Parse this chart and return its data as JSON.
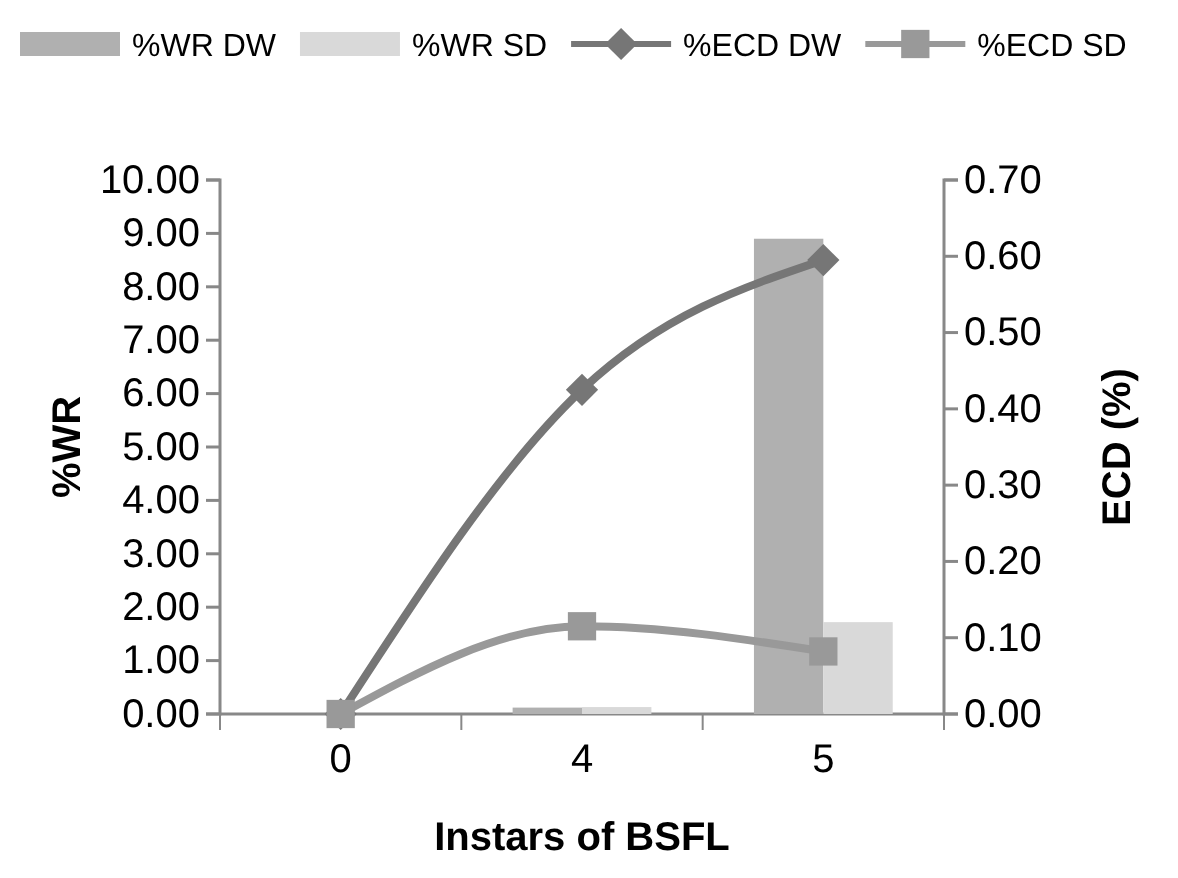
{
  "chart_data": {
    "type": "bar",
    "xlabel": "Instars of BSFL",
    "ylabel": "%WR",
    "y2label": "ECD (%)",
    "categories": [
      "0",
      "4",
      "5"
    ],
    "series": [
      {
        "name": "%WR DW",
        "color": "#b0b0b0",
        "values": [
          0,
          0.12,
          8.9
        ]
      },
      {
        "name": "%WR SD",
        "color": "#d9d9d9",
        "values": [
          0,
          0.13,
          1.72
        ]
      },
      {
        "name": "%ECD DW",
        "type": "line",
        "axis": "y2",
        "marker": "diamond",
        "color": "#767676",
        "values": [
          0,
          0.425,
          0.595
        ]
      },
      {
        "name": "%ECD SD",
        "type": "line",
        "axis": "y2",
        "marker": "square",
        "color": "#999999",
        "values": [
          0,
          0.115,
          0.082
        ]
      }
    ],
    "ylim": [
      0,
      10
    ],
    "yticks": [
      {
        "value": 0,
        "label": "0.00"
      },
      {
        "value": 1,
        "label": "1.00"
      },
      {
        "value": 2,
        "label": "2.00"
      },
      {
        "value": 3,
        "label": "3.00"
      },
      {
        "value": 4,
        "label": "4.00"
      },
      {
        "value": 5,
        "label": "5.00"
      },
      {
        "value": 6,
        "label": "6.00"
      },
      {
        "value": 7,
        "label": "7.00"
      },
      {
        "value": 8,
        "label": "8.00"
      },
      {
        "value": 9,
        "label": "9.00"
      },
      {
        "value": 10,
        "label": "10.00"
      }
    ],
    "y2lim": [
      0,
      0.7
    ],
    "y2ticks": [
      {
        "value": 0,
        "label": "0.00"
      },
      {
        "value": 0.1,
        "label": "0.10"
      },
      {
        "value": 0.2,
        "label": "0.20"
      },
      {
        "value": 0.3,
        "label": "0.30"
      },
      {
        "value": 0.4,
        "label": "0.40"
      },
      {
        "value": 0.5,
        "label": "0.50"
      },
      {
        "value": 0.6,
        "label": "0.60"
      },
      {
        "value": 0.7,
        "label": "0.70"
      }
    ],
    "legend": "top",
    "grid": false
  }
}
